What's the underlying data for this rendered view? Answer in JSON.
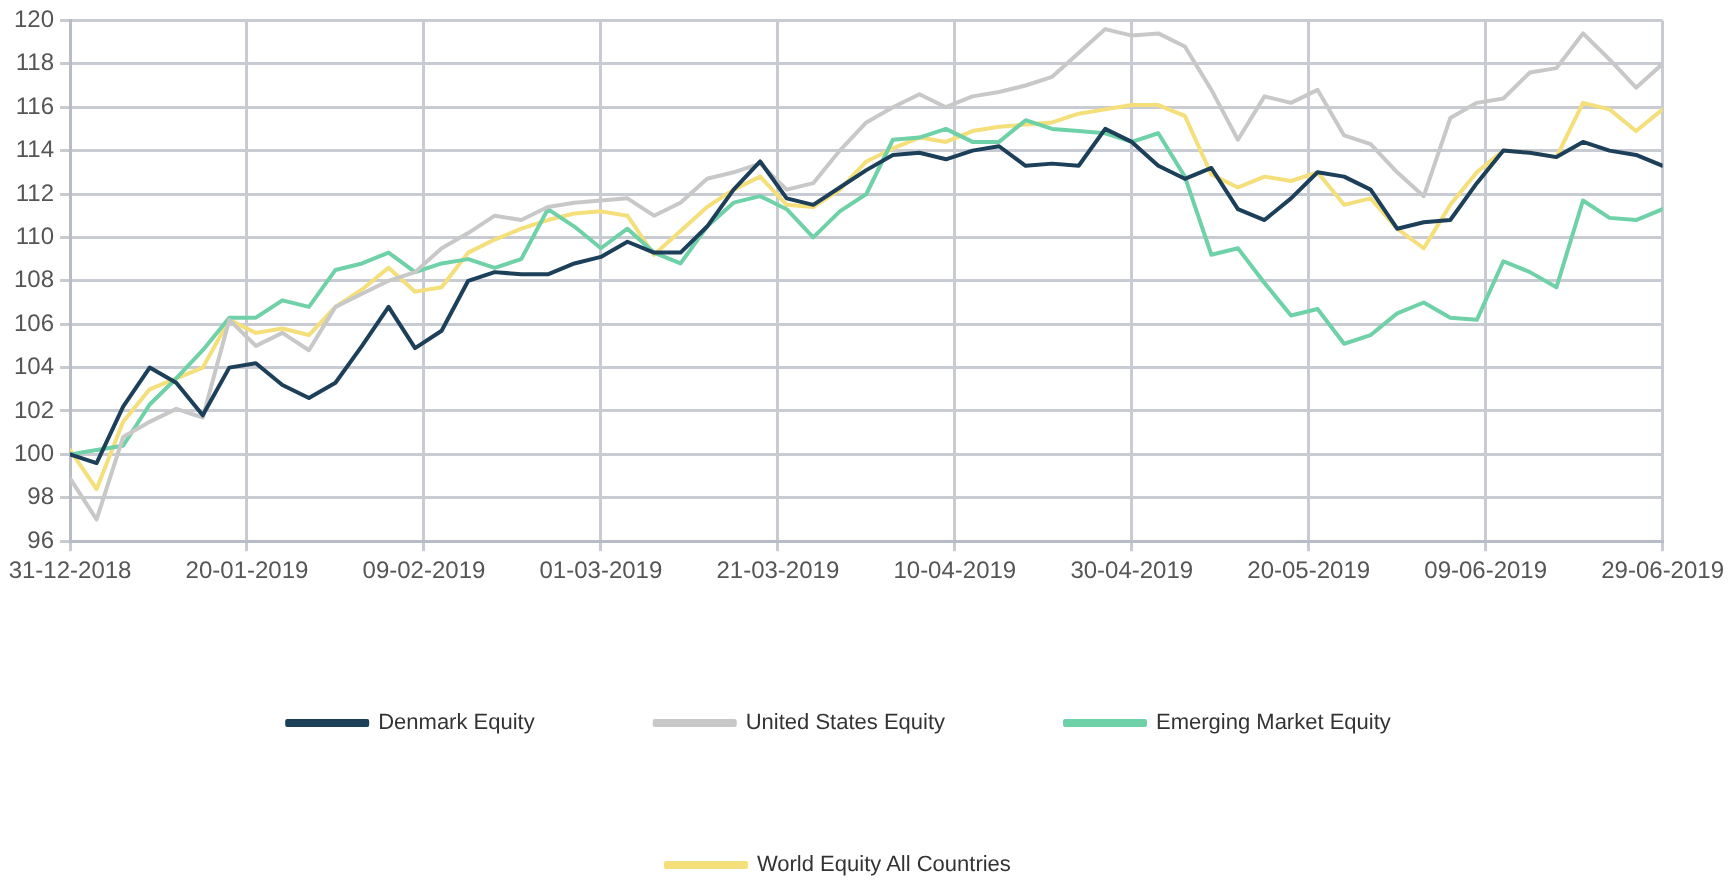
{
  "chart_data": {
    "type": "line",
    "x": [
      "2018-12-31",
      "2019-01-03",
      "2019-01-06",
      "2019-01-09",
      "2019-01-12",
      "2019-01-15",
      "2019-01-18",
      "2019-01-21",
      "2019-01-24",
      "2019-01-27",
      "2019-01-30",
      "2019-02-02",
      "2019-02-05",
      "2019-02-08",
      "2019-02-11",
      "2019-02-14",
      "2019-02-17",
      "2019-02-20",
      "2019-02-23",
      "2019-02-26",
      "2019-03-01",
      "2019-03-04",
      "2019-03-07",
      "2019-03-10",
      "2019-03-13",
      "2019-03-16",
      "2019-03-19",
      "2019-03-22",
      "2019-03-25",
      "2019-03-28",
      "2019-03-31",
      "2019-04-03",
      "2019-04-06",
      "2019-04-09",
      "2019-04-12",
      "2019-04-15",
      "2019-04-18",
      "2019-04-21",
      "2019-04-24",
      "2019-04-27",
      "2019-04-30",
      "2019-05-03",
      "2019-05-06",
      "2019-05-09",
      "2019-05-12",
      "2019-05-15",
      "2019-05-18",
      "2019-05-21",
      "2019-05-24",
      "2019-05-27",
      "2019-05-30",
      "2019-06-02",
      "2019-06-05",
      "2019-06-08",
      "2019-06-11",
      "2019-06-14",
      "2019-06-17",
      "2019-06-20",
      "2019-06-23",
      "2019-06-26",
      "2019-06-29"
    ],
    "series": [
      {
        "name": "Denmark Equity",
        "color": "#1c3f5a",
        "values": [
          100,
          99.6,
          102.2,
          104,
          103.3,
          101.8,
          104,
          104.2,
          103.2,
          102.6,
          103.3,
          105,
          106.8,
          104.9,
          105.7,
          108,
          108.4,
          108.3,
          108.3,
          108.8,
          109.1,
          109.8,
          109.3,
          109.3,
          110.5,
          112.2,
          113.5,
          111.8,
          111.5,
          112.3,
          113.1,
          113.8,
          113.9,
          113.6,
          114,
          114.2,
          113.3,
          113.4,
          113.3,
          115,
          114.4,
          113.3,
          112.7,
          113.2,
          111.3,
          110.8,
          111.8,
          113,
          112.8,
          112.2,
          110.4,
          110.7,
          110.8,
          112.5,
          114,
          113.9,
          113.7,
          114.4,
          114,
          113.8,
          113.3
        ]
      },
      {
        "name": "United States Equity",
        "color": "#c8c8c8",
        "values": [
          98.9,
          97,
          100.8,
          101.5,
          102.1,
          101.7,
          106.2,
          105,
          105.6,
          104.8,
          106.8,
          107.4,
          108,
          108.4,
          109.5,
          110.2,
          111,
          110.8,
          111.4,
          111.6,
          111.7,
          111.8,
          111,
          111.6,
          112.7,
          113,
          113.4,
          112.2,
          112.5,
          114,
          115.3,
          116,
          116.6,
          116,
          116.5,
          116.7,
          117,
          117.4,
          118.5,
          119.6,
          119.3,
          119.4,
          118.8,
          116.8,
          114.5,
          116.5,
          116.2,
          116.8,
          114.7,
          114.3,
          113,
          111.9,
          115.5,
          116.2,
          116.4,
          117.6,
          117.8,
          119.4,
          118.2,
          116.9,
          118
        ]
      },
      {
        "name": "Emerging Market Equity",
        "color": "#6fd1a8",
        "values": [
          100,
          100.2,
          100.4,
          102.3,
          103.5,
          104.8,
          106.3,
          106.3,
          107.1,
          106.8,
          108.5,
          108.8,
          109.3,
          108.4,
          108.8,
          109,
          108.6,
          109,
          111.3,
          110.5,
          109.5,
          110.4,
          109.3,
          108.8,
          110.5,
          111.6,
          111.9,
          111.3,
          110,
          111.2,
          112,
          114.5,
          114.6,
          115,
          114.4,
          114.4,
          115.4,
          115,
          114.9,
          114.8,
          114.4,
          114.8,
          112.8,
          109.2,
          109.5,
          107.9,
          106.4,
          106.7,
          105.1,
          105.5,
          106.5,
          107,
          106.3,
          106.2,
          108.9,
          108.4,
          107.7,
          111.7,
          110.9,
          110.8,
          111.3
        ]
      },
      {
        "name": "World Equity All Countries",
        "color": "#f5df7a",
        "values": [
          100.2,
          98.4,
          101.5,
          103,
          103.5,
          104,
          106.2,
          105.6,
          105.8,
          105.5,
          106.8,
          107.6,
          108.6,
          107.5,
          107.7,
          109.3,
          109.9,
          110.4,
          110.8,
          111.1,
          111.2,
          111,
          109.2,
          110.3,
          111.4,
          112.2,
          112.8,
          111.5,
          111.4,
          112.2,
          113.5,
          114.1,
          114.6,
          114.4,
          114.9,
          115.1,
          115.2,
          115.3,
          115.7,
          115.9,
          116.1,
          116.1,
          115.6,
          112.9,
          112.3,
          112.8,
          112.6,
          113,
          111.5,
          111.8,
          110.4,
          109.5,
          111.5,
          113,
          114,
          113.9,
          113.7,
          116.2,
          115.9,
          114.9,
          115.9
        ]
      }
    ],
    "xlim": [
      "2018-12-31",
      "2019-06-29"
    ],
    "xticks": [
      {
        "value": "2018-12-31",
        "label": "31-12-2018"
      },
      {
        "value": "2019-01-20",
        "label": "20-01-2019"
      },
      {
        "value": "2019-02-09",
        "label": "09-02-2019"
      },
      {
        "value": "2019-03-01",
        "label": "01-03-2019"
      },
      {
        "value": "2019-03-21",
        "label": "21-03-2019"
      },
      {
        "value": "2019-04-10",
        "label": "10-04-2019"
      },
      {
        "value": "2019-04-30",
        "label": "30-04-2019"
      },
      {
        "value": "2019-05-20",
        "label": "20-05-2019"
      },
      {
        "value": "2019-06-09",
        "label": "09-06-2019"
      },
      {
        "value": "2019-06-29",
        "label": "29-06-2019"
      }
    ],
    "ylim": [
      96,
      120
    ],
    "yticks": [
      96,
      98,
      100,
      102,
      104,
      106,
      108,
      110,
      112,
      114,
      116,
      118,
      120
    ],
    "grid": true,
    "legend": "bottom",
    "marker": "none",
    "line_style": "solid"
  }
}
